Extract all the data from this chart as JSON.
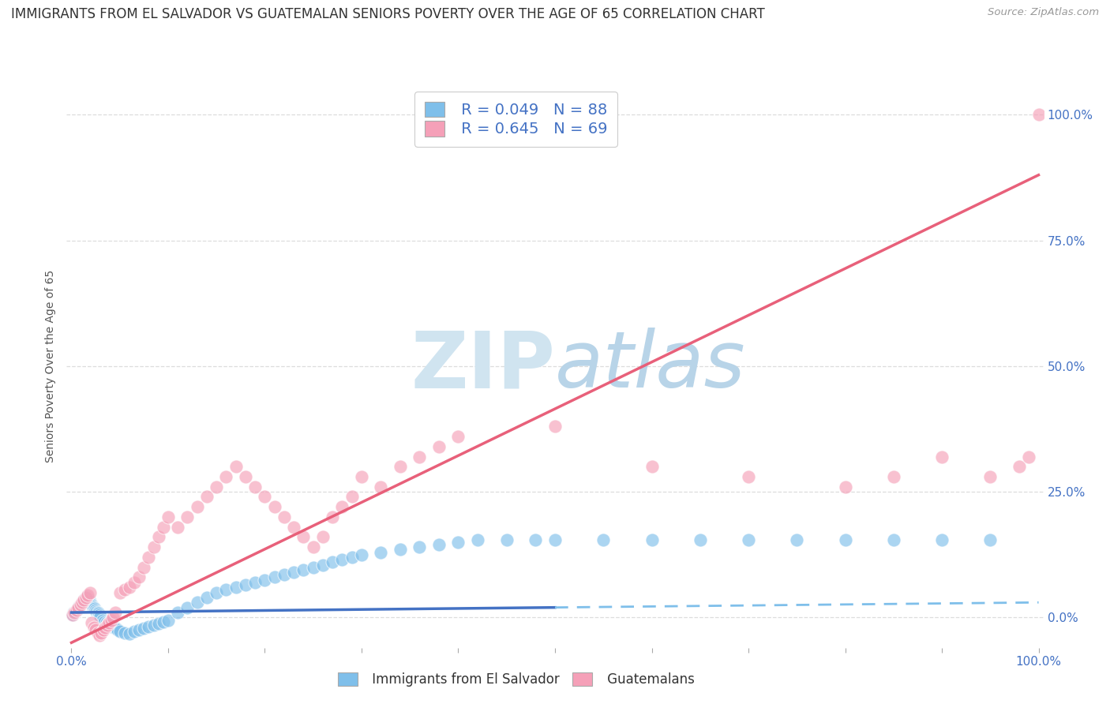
{
  "title": "IMMIGRANTS FROM EL SALVADOR VS GUATEMALAN SENIORS POVERTY OVER THE AGE OF 65 CORRELATION CHART",
  "source": "Source: ZipAtlas.com",
  "ylabel": "Seniors Poverty Over the Age of 65",
  "xlim": [
    -0.005,
    1.005
  ],
  "ylim": [
    -0.06,
    1.06
  ],
  "y_tick_vals": [
    0.0,
    0.25,
    0.5,
    0.75,
    1.0
  ],
  "y_tick_labels": [
    "0.0%",
    "25.0%",
    "50.0%",
    "75.0%",
    "100.0%"
  ],
  "legend_r1": "R = 0.049",
  "legend_n1": "N = 88",
  "legend_r2": "R = 0.645",
  "legend_n2": "N = 69",
  "blue_color": "#7fbfea",
  "pink_color": "#f5a0b8",
  "line_blue_solid": "#4472c4",
  "line_blue_dash": "#7fbfea",
  "line_pink": "#e8607a",
  "watermark_color": "#d0e4f0",
  "title_fontsize": 12,
  "axis_label_fontsize": 10,
  "tick_fontsize": 11,
  "background_color": "#ffffff",
  "blue_scatter_x": [
    0.001,
    0.002,
    0.003,
    0.004,
    0.005,
    0.006,
    0.007,
    0.008,
    0.009,
    0.01,
    0.011,
    0.012,
    0.013,
    0.014,
    0.015,
    0.016,
    0.017,
    0.018,
    0.019,
    0.02,
    0.021,
    0.022,
    0.023,
    0.024,
    0.025,
    0.026,
    0.027,
    0.028,
    0.029,
    0.03,
    0.032,
    0.034,
    0.036,
    0.038,
    0.04,
    0.042,
    0.044,
    0.046,
    0.048,
    0.05,
    0.055,
    0.06,
    0.065,
    0.07,
    0.075,
    0.08,
    0.085,
    0.09,
    0.095,
    0.1,
    0.11,
    0.12,
    0.13,
    0.14,
    0.15,
    0.16,
    0.17,
    0.18,
    0.19,
    0.2,
    0.21,
    0.22,
    0.23,
    0.24,
    0.25,
    0.26,
    0.27,
    0.28,
    0.29,
    0.3,
    0.32,
    0.34,
    0.36,
    0.38,
    0.4,
    0.42,
    0.45,
    0.48,
    0.5,
    0.55,
    0.6,
    0.65,
    0.7,
    0.75,
    0.8,
    0.85,
    0.9,
    0.95
  ],
  "blue_scatter_y": [
    0.005,
    0.01,
    0.008,
    0.012,
    0.015,
    0.018,
    0.02,
    0.022,
    0.025,
    0.028,
    0.03,
    0.032,
    0.035,
    0.038,
    0.04,
    0.042,
    0.038,
    0.035,
    0.032,
    0.028,
    0.025,
    0.022,
    0.02,
    0.018,
    0.015,
    0.012,
    0.01,
    0.008,
    0.005,
    0.003,
    -0.005,
    -0.008,
    -0.01,
    -0.012,
    -0.015,
    -0.018,
    -0.02,
    -0.022,
    -0.025,
    -0.028,
    -0.03,
    -0.032,
    -0.028,
    -0.025,
    -0.022,
    -0.018,
    -0.015,
    -0.012,
    -0.008,
    -0.005,
    0.01,
    0.02,
    0.03,
    0.04,
    0.05,
    0.055,
    0.06,
    0.065,
    0.07,
    0.075,
    0.08,
    0.085,
    0.09,
    0.095,
    0.1,
    0.105,
    0.11,
    0.115,
    0.12,
    0.125,
    0.13,
    0.135,
    0.14,
    0.145,
    0.15,
    0.155,
    0.155,
    0.155,
    0.155,
    0.155,
    0.155,
    0.155,
    0.155,
    0.155,
    0.155,
    0.155,
    0.155,
    0.155
  ],
  "pink_scatter_x": [
    0.001,
    0.003,
    0.005,
    0.007,
    0.009,
    0.011,
    0.013,
    0.015,
    0.017,
    0.019,
    0.021,
    0.023,
    0.025,
    0.027,
    0.029,
    0.031,
    0.033,
    0.035,
    0.037,
    0.039,
    0.041,
    0.043,
    0.045,
    0.05,
    0.055,
    0.06,
    0.065,
    0.07,
    0.075,
    0.08,
    0.085,
    0.09,
    0.095,
    0.1,
    0.11,
    0.12,
    0.13,
    0.14,
    0.15,
    0.16,
    0.17,
    0.18,
    0.19,
    0.2,
    0.21,
    0.22,
    0.23,
    0.24,
    0.25,
    0.26,
    0.27,
    0.28,
    0.29,
    0.3,
    0.32,
    0.34,
    0.36,
    0.38,
    0.4,
    0.5,
    0.6,
    0.7,
    0.8,
    0.85,
    0.9,
    0.95,
    0.98,
    0.99,
    1.0
  ],
  "pink_scatter_y": [
    0.005,
    0.01,
    0.015,
    0.02,
    0.025,
    0.03,
    0.035,
    0.04,
    0.045,
    0.05,
    -0.01,
    -0.02,
    -0.025,
    -0.03,
    -0.035,
    -0.03,
    -0.025,
    -0.02,
    -0.015,
    -0.01,
    -0.005,
    0.0,
    0.01,
    0.05,
    0.055,
    0.06,
    0.07,
    0.08,
    0.1,
    0.12,
    0.14,
    0.16,
    0.18,
    0.2,
    0.18,
    0.2,
    0.22,
    0.24,
    0.26,
    0.28,
    0.3,
    0.28,
    0.26,
    0.24,
    0.22,
    0.2,
    0.18,
    0.16,
    0.14,
    0.16,
    0.2,
    0.22,
    0.24,
    0.28,
    0.26,
    0.3,
    0.32,
    0.34,
    0.36,
    0.38,
    0.3,
    0.28,
    0.26,
    0.28,
    0.32,
    0.28,
    0.3,
    0.32,
    1.0
  ],
  "blue_trend_x": [
    0.0,
    0.5,
    1.0
  ],
  "blue_trend_y": [
    0.01,
    0.02,
    0.03
  ],
  "pink_trend_x": [
    0.0,
    1.0
  ],
  "pink_trend_y": [
    -0.05,
    0.88
  ]
}
